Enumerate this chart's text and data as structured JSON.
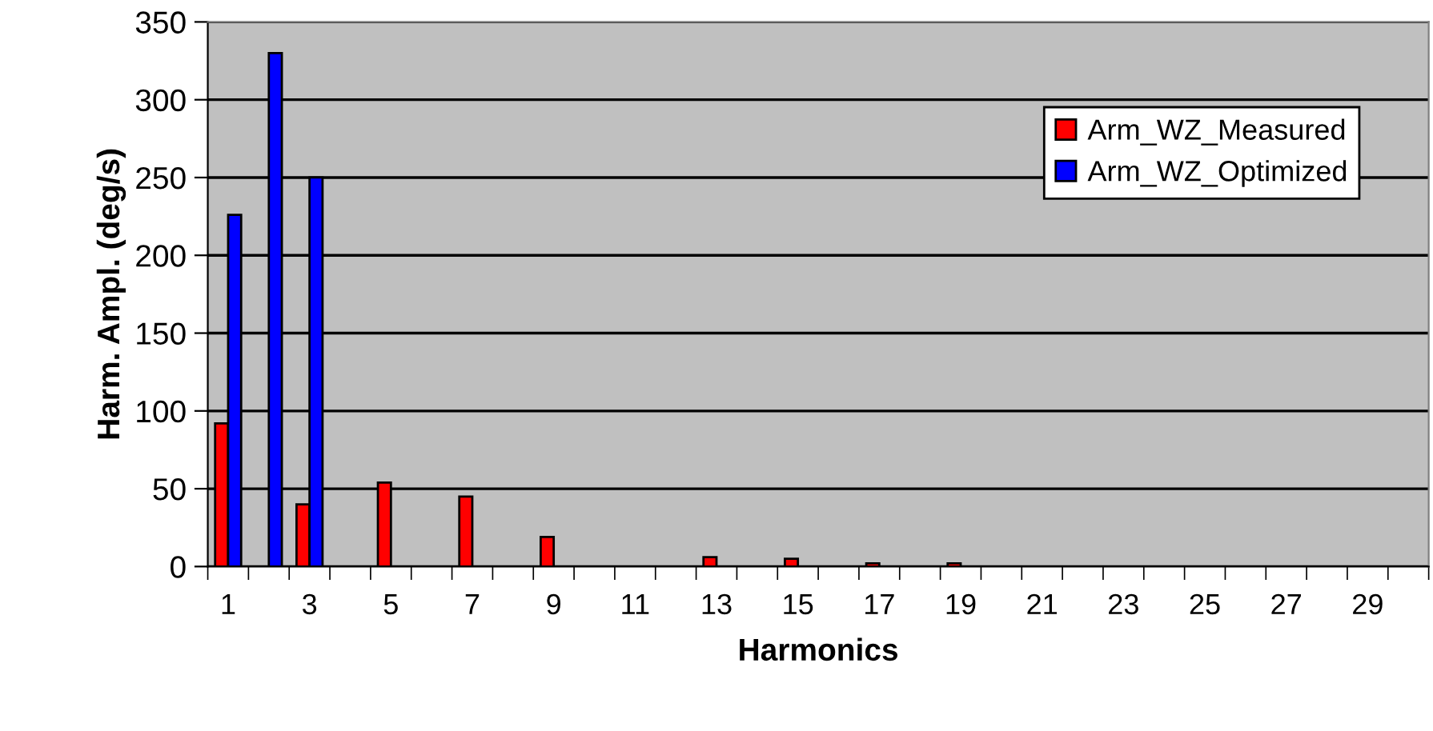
{
  "chart_data": {
    "type": "bar",
    "xlabel": "Harmonics",
    "ylabel": "Harm. Ampl. (deg/s)",
    "categories": [
      "1",
      null,
      "3",
      null,
      "5",
      null,
      "7",
      null,
      "9",
      null,
      "11",
      null,
      "13",
      null,
      "15",
      null,
      "17",
      null,
      "19",
      null,
      "21",
      null,
      "23",
      null,
      "25",
      null,
      "27",
      null,
      "29",
      null
    ],
    "series": [
      {
        "name": "Arm_WZ_Measured",
        "color": "#ff0000",
        "values": [
          92,
          null,
          40,
          null,
          54,
          null,
          45,
          null,
          19,
          null,
          null,
          null,
          6,
          null,
          5,
          null,
          2,
          null,
          2,
          null,
          null,
          null,
          null,
          null,
          null,
          null,
          null,
          null,
          null,
          null
        ]
      },
      {
        "name": "Arm_WZ_Optimized",
        "color": "#0000ff",
        "values": [
          226,
          330,
          250,
          null,
          null,
          null,
          null,
          null,
          null,
          null,
          null,
          null,
          null,
          null,
          null,
          null,
          null,
          null,
          null,
          null,
          null,
          null,
          null,
          null,
          null,
          null,
          null,
          null,
          null,
          null
        ]
      }
    ],
    "ylim": [
      0,
      350
    ],
    "yticks": [
      0,
      50,
      100,
      150,
      200,
      250,
      300,
      350
    ],
    "grid": "y",
    "legend": "top right"
  }
}
